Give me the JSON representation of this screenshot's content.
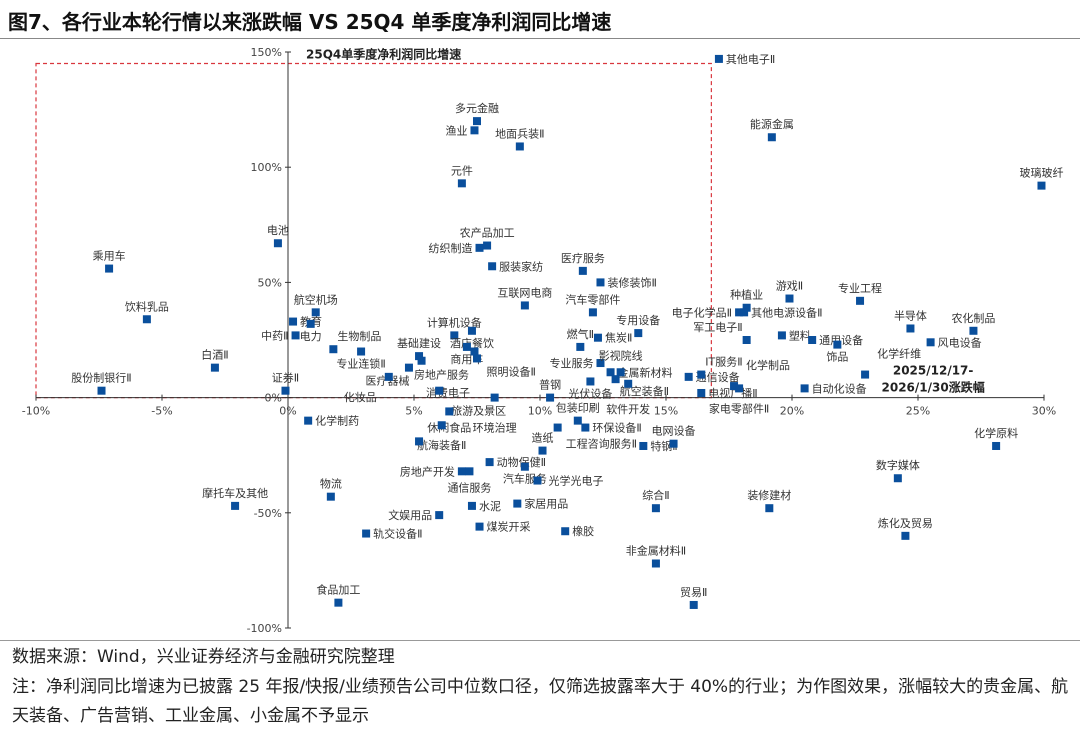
{
  "title": "图7、各行业本轮行情以来涨跌幅  VS 25Q4 单季度净利润同比增速",
  "footer": {
    "source": "数据来源：Wind，兴业证券经济与金融研究院整理",
    "note": "注：净利润同比增速为已披露 25 年报/快报/业绩预告公司中位数口径，仅筛选披露率大于 40%的行业；为作图效果，涨幅较大的贵金属、航天装备、广告营销、工业金属、小金属不予显示"
  },
  "chart_data": {
    "type": "scatter",
    "ylabel": "25Q4单季度净利润同比增速",
    "xlabel": "2025/12/17-\n2026/1/30涨跌幅",
    "xlim": [
      -10,
      30
    ],
    "ylim": [
      -100,
      150
    ],
    "x_ticks": [
      "-10%",
      "-5%",
      "0%",
      "5%",
      "10%",
      "15%",
      "20%",
      "25%",
      "30%"
    ],
    "y_ticks": [
      "-100%",
      "-50%",
      "0%",
      "50%",
      "100%",
      "150%"
    ],
    "marker_color": "#0a4f9c",
    "highlight_box": {
      "x": [
        -10,
        16.8
      ],
      "y": [
        0,
        145
      ],
      "color": "#d9363e"
    },
    "points": [
      {
        "label": "其他电子Ⅱ",
        "x": 17.1,
        "y": 147,
        "pos": "top"
      },
      {
        "label": "多元金融",
        "x": 7.5,
        "y": 120,
        "pos": "top"
      },
      {
        "label": "渔业",
        "x": 7.4,
        "y": 116,
        "pos": "left"
      },
      {
        "label": "地面兵装Ⅱ",
        "x": 9.2,
        "y": 109,
        "pos": "top"
      },
      {
        "label": "能源金属",
        "x": 19.2,
        "y": 113,
        "pos": "top"
      },
      {
        "label": "元件",
        "x": 6.9,
        "y": 93,
        "pos": "top"
      },
      {
        "label": "玻璃玻纤",
        "x": 29.9,
        "y": 92,
        "pos": "top"
      },
      {
        "label": "电池",
        "x": -0.4,
        "y": 67,
        "pos": "top"
      },
      {
        "label": "农产品加工",
        "x": 7.9,
        "y": 66,
        "pos": "top"
      },
      {
        "label": "纺织制造",
        "x": 7.6,
        "y": 65,
        "pos": "left"
      },
      {
        "label": "乘用车",
        "x": -7.1,
        "y": 56,
        "pos": "top"
      },
      {
        "label": "服装家纺",
        "x": 8.1,
        "y": 57,
        "pos": "right"
      },
      {
        "label": "医疗服务",
        "x": 11.7,
        "y": 55,
        "pos": "top"
      },
      {
        "label": "装修装饰Ⅱ",
        "x": 12.4,
        "y": 50,
        "pos": "right"
      },
      {
        "label": "互联网电商",
        "x": 9.4,
        "y": 40,
        "pos": "top"
      },
      {
        "label": "饮料乳品",
        "x": -5.6,
        "y": 34,
        "pos": "top"
      },
      {
        "label": "汽车零部件",
        "x": 12.1,
        "y": 37,
        "pos": "top"
      },
      {
        "label": "航空机场",
        "x": 1.1,
        "y": 37,
        "pos": "top"
      },
      {
        "label": "教育",
        "x": 0.2,
        "y": 33,
        "pos": "top"
      },
      {
        "label": "电力",
        "x": 0.9,
        "y": 32,
        "pos": "right"
      },
      {
        "label": "中药Ⅱ",
        "x": 0.3,
        "y": 27,
        "pos": "left"
      },
      {
        "label": "生物制品",
        "x": 1.8,
        "y": 21,
        "pos": "topright"
      },
      {
        "label": "专业连锁Ⅱ",
        "x": 2.9,
        "y": 20,
        "pos": "bottom"
      },
      {
        "label": "计算机设备",
        "x": 6.6,
        "y": 27,
        "pos": "top"
      },
      {
        "label": "酒店餐饮",
        "x": 7.3,
        "y": 29,
        "pos": "top"
      },
      {
        "label": "商用车",
        "x": 7.1,
        "y": 22,
        "pos": "top"
      },
      {
        "label": "照明设备Ⅱ",
        "x": 7.4,
        "y": 20,
        "pos": "right"
      },
      {
        "label": "房地产服务",
        "x": 7.5,
        "y": 17,
        "pos": "right"
      },
      {
        "label": "基础建设",
        "x": 5.2,
        "y": 18,
        "pos": "left"
      },
      {
        "label": "医疗器械",
        "x": 5.3,
        "y": 16,
        "pos": "right"
      },
      {
        "label": "消费电子",
        "x": 4.8,
        "y": 13,
        "pos": "bottomright"
      },
      {
        "label": "化妆品",
        "x": 4.0,
        "y": 9,
        "pos": "left"
      },
      {
        "label": "证券Ⅱ",
        "x": -0.1,
        "y": 3,
        "pos": "top"
      },
      {
        "label": "白酒Ⅱ",
        "x": -2.9,
        "y": 13,
        "pos": "top"
      },
      {
        "label": "股份制银行Ⅱ",
        "x": -7.4,
        "y": 3,
        "pos": "top"
      },
      {
        "label": "旅游及景区",
        "x": 6.0,
        "y": 3,
        "pos": "bottom"
      },
      {
        "label": "休闲食品",
        "x": 6.4,
        "y": -6,
        "pos": "top"
      },
      {
        "label": "环境治理",
        "x": 8.2,
        "y": 0,
        "pos": "top"
      },
      {
        "label": "普钢",
        "x": 10.4,
        "y": 0,
        "pos": "top"
      },
      {
        "label": "化学制药",
        "x": 0.8,
        "y": -10,
        "pos": "right"
      },
      {
        "label": "航海装备Ⅱ",
        "x": 6.1,
        "y": -12,
        "pos": "left"
      },
      {
        "label": "",
        "x": 5.2,
        "y": -19,
        "pos": "top"
      },
      {
        "label": "燃气Ⅱ",
        "x": 11.6,
        "y": 22,
        "pos": "top"
      },
      {
        "label": "焦炭Ⅱ",
        "x": 12.3,
        "y": 26,
        "pos": "top"
      },
      {
        "label": "专用设备",
        "x": 13.9,
        "y": 28,
        "pos": "top"
      },
      {
        "label": "专业服务",
        "x": 12.4,
        "y": 15,
        "pos": "left"
      },
      {
        "label": "金属新材料",
        "x": 12.8,
        "y": 11,
        "pos": "top"
      },
      {
        "label": "影视院线",
        "x": 13.2,
        "y": 11,
        "pos": "right"
      },
      {
        "label": "光伏设备",
        "x": 12.0,
        "y": 7,
        "pos": "left"
      },
      {
        "label": "航空装备Ⅱ",
        "x": 13.0,
        "y": 8,
        "pos": "bottom"
      },
      {
        "label": "软件开发",
        "x": 13.5,
        "y": 6,
        "pos": "right"
      },
      {
        "label": "通信设备",
        "x": 15.9,
        "y": 9,
        "pos": "top"
      },
      {
        "label": "IT服务Ⅱ",
        "x": 16.4,
        "y": 10,
        "pos": "topright"
      },
      {
        "label": "电视广播Ⅱ",
        "x": 16.4,
        "y": 2,
        "pos": "left"
      },
      {
        "label": "电子化学品Ⅱ",
        "x": 17.9,
        "y": 37,
        "pos": "left"
      },
      {
        "label": "种植业",
        "x": 18.2,
        "y": 39,
        "pos": "top"
      },
      {
        "label": "游戏Ⅱ",
        "x": 19.9,
        "y": 43,
        "pos": "top"
      },
      {
        "label": "其他电源设备Ⅱ",
        "x": 18.1,
        "y": 37,
        "pos": "right"
      },
      {
        "label": "军工电子Ⅱ",
        "x": 18.2,
        "y": 25,
        "pos": "topleft"
      },
      {
        "label": "塑料",
        "x": 19.6,
        "y": 27,
        "pos": "top"
      },
      {
        "label": "通用设备",
        "x": 20.8,
        "y": 25,
        "pos": "top"
      },
      {
        "label": "化学制品",
        "x": 17.7,
        "y": 5,
        "pos": "right"
      },
      {
        "label": "家电零部件Ⅱ",
        "x": 17.9,
        "y": 4,
        "pos": "bottom"
      },
      {
        "label": "自动化设备",
        "x": 20.5,
        "y": 4,
        "pos": "top"
      },
      {
        "label": "饰品",
        "x": 21.8,
        "y": 23,
        "pos": "top"
      },
      {
        "label": "专业工程",
        "x": 22.7,
        "y": 42,
        "pos": "top"
      },
      {
        "label": "化学纤维",
        "x": 22.9,
        "y": 10,
        "pos": "top"
      },
      {
        "label": "半导体",
        "x": 24.7,
        "y": 30,
        "pos": "top"
      },
      {
        "label": "风电设备",
        "x": 25.5,
        "y": 24,
        "pos": "top"
      },
      {
        "label": "农化制品",
        "x": 27.2,
        "y": 29,
        "pos": "top"
      },
      {
        "label": "化学原料",
        "x": 28.1,
        "y": -21,
        "pos": "top"
      },
      {
        "label": "包装印刷",
        "x": 11.5,
        "y": -10,
        "pos": "top"
      },
      {
        "label": "环保设备Ⅱ",
        "x": 11.8,
        "y": -13,
        "pos": "right"
      },
      {
        "label": "工程咨询服务Ⅱ",
        "x": 10.7,
        "y": -13,
        "pos": "bottomright"
      },
      {
        "label": "特钢Ⅱ",
        "x": 14.1,
        "y": -21,
        "pos": "top"
      },
      {
        "label": "电网设备",
        "x": 15.3,
        "y": -20,
        "pos": "top"
      },
      {
        "label": "动物保健Ⅱ",
        "x": 8.0,
        "y": -28,
        "pos": "top"
      },
      {
        "label": "造纸",
        "x": 10.1,
        "y": -23,
        "pos": "right"
      },
      {
        "label": "汽车服务",
        "x": 9.4,
        "y": -30,
        "pos": "top"
      },
      {
        "label": "房地产开发",
        "x": 6.9,
        "y": -32,
        "pos": "top"
      },
      {
        "label": "通信服务",
        "x": 7.2,
        "y": -32,
        "pos": "left"
      },
      {
        "label": "光学光电子",
        "x": 9.9,
        "y": -36,
        "pos": "right"
      },
      {
        "label": "家居用品",
        "x": 9.1,
        "y": -46,
        "pos": "top"
      },
      {
        "label": "水泥",
        "x": 7.3,
        "y": -47,
        "pos": "top"
      },
      {
        "label": "文娱用品",
        "x": 6.0,
        "y": -51,
        "pos": "top"
      },
      {
        "label": "煤炭开采",
        "x": 7.6,
        "y": -56,
        "pos": "topright"
      },
      {
        "label": "橡胶",
        "x": 11.0,
        "y": -58,
        "pos": "top"
      },
      {
        "label": "综合Ⅱ",
        "x": 14.6,
        "y": -48,
        "pos": "top"
      },
      {
        "label": "非金属材料Ⅱ",
        "x": 14.6,
        "y": -72,
        "pos": "top"
      },
      {
        "label": "贸易Ⅱ",
        "x": 16.1,
        "y": -90,
        "pos": "top"
      },
      {
        "label": "装修建材",
        "x": 19.1,
        "y": -48,
        "pos": "top"
      },
      {
        "label": "数字媒体",
        "x": 24.2,
        "y": -35,
        "pos": "top"
      },
      {
        "label": "炼化及贸易",
        "x": 24.5,
        "y": -60,
        "pos": "top"
      },
      {
        "label": "摩托车及其他",
        "x": -2.1,
        "y": -47,
        "pos": "top"
      },
      {
        "label": "物流",
        "x": 1.7,
        "y": -43,
        "pos": "top"
      },
      {
        "label": "轨交设备Ⅱ",
        "x": 3.1,
        "y": -59,
        "pos": "top"
      },
      {
        "label": "食品加工",
        "x": 2.0,
        "y": -89,
        "pos": "top"
      }
    ]
  }
}
